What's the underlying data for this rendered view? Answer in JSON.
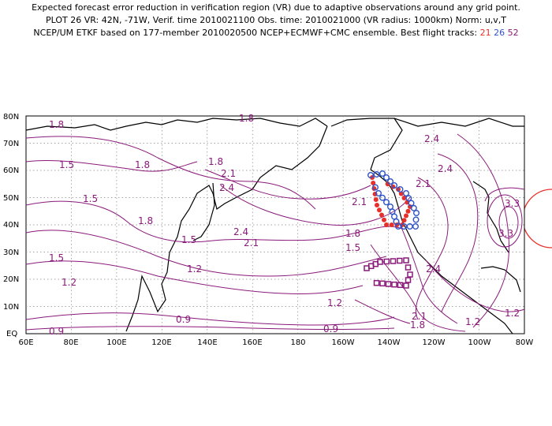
{
  "title": {
    "line1": "Expected forecast error reduction in verification region (VR) due to adaptive observations around any grid point.",
    "line2": "PLOT 26 VR: 42N, -71W, Verif. time 2010021100 Obs. time: 2010021000 (VR radius: 1000km) Norm: u,v,T",
    "line3_prefix": "NCEP/UM ETKF based on 177-member 2010020500 NCEP+ECMWF+CMC ensemble. Best flight tracks:",
    "track1": "21",
    "track2": "26",
    "track3": "52"
  },
  "map": {
    "lat_labels": [
      "80N",
      "70N",
      "60N",
      "50N",
      "40N",
      "30N",
      "20N",
      "10N",
      "EQ"
    ],
    "lon_labels": [
      "60E",
      "80E",
      "100E",
      "120E",
      "140E",
      "160E",
      "180",
      "160W",
      "140W",
      "120W",
      "100W",
      "80W"
    ],
    "contour_labels": [
      {
        "text": "1.8"
      },
      {
        "text": "1.8"
      },
      {
        "text": "1.5"
      },
      {
        "text": "1.8"
      },
      {
        "text": "1.5"
      },
      {
        "text": "2.1"
      },
      {
        "text": "2.4"
      },
      {
        "text": "1.8"
      },
      {
        "text": "1.8"
      },
      {
        "text": "2.4"
      },
      {
        "text": "2.1"
      },
      {
        "text": "1.5"
      },
      {
        "text": "1.2"
      },
      {
        "text": "1.5"
      },
      {
        "text": "1.2"
      },
      {
        "text": "0.9"
      },
      {
        "text": "0.9"
      },
      {
        "text": "2.4"
      },
      {
        "text": "2.4"
      },
      {
        "text": "2.1"
      },
      {
        "text": "2.1"
      },
      {
        "text": "1.8"
      },
      {
        "text": "1.5"
      },
      {
        "text": "1.2"
      },
      {
        "text": "2.4"
      },
      {
        "text": "2.1"
      },
      {
        "text": "1.8"
      },
      {
        "text": "1.2"
      },
      {
        "text": "1.2"
      },
      {
        "text": "0.9"
      },
      {
        "text": "3.3"
      },
      {
        "text": "3.3"
      }
    ],
    "colors": {
      "contour": "#8a1a7a",
      "track21": "#e8302a",
      "track26": "#2f54c8",
      "track52": "#8a1a7a",
      "vr_circle": "#e8302a"
    }
  }
}
